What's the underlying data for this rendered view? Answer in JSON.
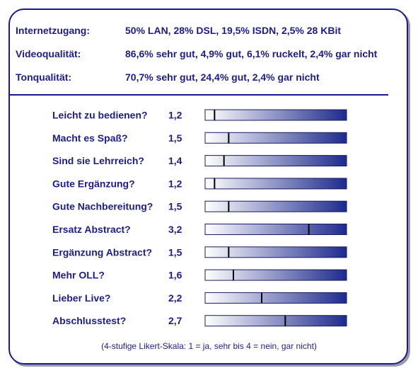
{
  "info": [
    {
      "label": "Internetzugang:",
      "value": "50% LAN, 28% DSL, 19,5% ISDN, 2,5% 28 KBit"
    },
    {
      "label": "Videoqualität:",
      "value": "86,6% sehr gut, 4,9% gut, 6,1% ruckelt, 2,4% gar nicht"
    },
    {
      "label": "Tonqualität:",
      "value": "70,7% sehr gut, 24,4% gut, 2,4% gar nicht"
    }
  ],
  "chart_data": {
    "type": "bar",
    "scale": [
      1,
      4
    ],
    "categories": [
      "Leicht zu bedienen?",
      "Macht es Spaß?",
      "Sind sie Lehrreich?",
      "Gute Ergänzung?",
      "Gute Nachbereitung?",
      "Ersatz Abstract?",
      "Ergänzung Abstract?",
      "Mehr OLL?",
      "Lieber Live?",
      "Abschlusstest?"
    ],
    "values": [
      1.2,
      1.5,
      1.4,
      1.2,
      1.5,
      3.2,
      1.5,
      1.6,
      2.2,
      2.7
    ],
    "value_labels": [
      "1,2",
      "1,5",
      "1,4",
      "1,2",
      "1,5",
      "3,2",
      "1,5",
      "1,6",
      "2,2",
      "2,7"
    ],
    "gradient": [
      "#ffffff",
      "#1e2a8c"
    ]
  },
  "footnote": "(4-stufige Likert-Skala: 1 = ja, sehr  bis  4 = nein, gar nicht)"
}
